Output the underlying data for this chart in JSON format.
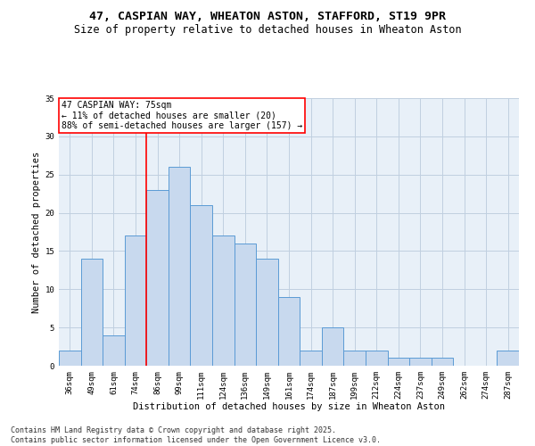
{
  "title1": "47, CASPIAN WAY, WHEATON ASTON, STAFFORD, ST19 9PR",
  "title2": "Size of property relative to detached houses in Wheaton Aston",
  "xlabel": "Distribution of detached houses by size in Wheaton Aston",
  "ylabel": "Number of detached properties",
  "categories": [
    "36sqm",
    "49sqm",
    "61sqm",
    "74sqm",
    "86sqm",
    "99sqm",
    "111sqm",
    "124sqm",
    "136sqm",
    "149sqm",
    "161sqm",
    "174sqm",
    "187sqm",
    "199sqm",
    "212sqm",
    "224sqm",
    "237sqm",
    "249sqm",
    "262sqm",
    "274sqm",
    "287sqm"
  ],
  "values": [
    2,
    14,
    4,
    17,
    23,
    26,
    21,
    17,
    16,
    14,
    9,
    2,
    5,
    2,
    2,
    1,
    1,
    1,
    0,
    0,
    2
  ],
  "bar_color": "#c8d9ee",
  "bar_edge_color": "#5b9bd5",
  "grid_color": "#c0cfe0",
  "background_color": "#e8f0f8",
  "property_line_x": 3.5,
  "property_label": "47 CASPIAN WAY: 75sqm",
  "annotation_line1": "← 11% of detached houses are smaller (20)",
  "annotation_line2": "88% of semi-detached houses are larger (157) →",
  "annotation_box_color": "white",
  "annotation_box_edge": "red",
  "vline_color": "red",
  "ylim": [
    0,
    35
  ],
  "yticks": [
    0,
    5,
    10,
    15,
    20,
    25,
    30,
    35
  ],
  "footer1": "Contains HM Land Registry data © Crown copyright and database right 2025.",
  "footer2": "Contains public sector information licensed under the Open Government Licence v3.0.",
  "title_fontsize": 9.5,
  "subtitle_fontsize": 8.5,
  "axis_label_fontsize": 7.5,
  "tick_fontsize": 6.5,
  "annotation_fontsize": 7,
  "footer_fontsize": 6
}
